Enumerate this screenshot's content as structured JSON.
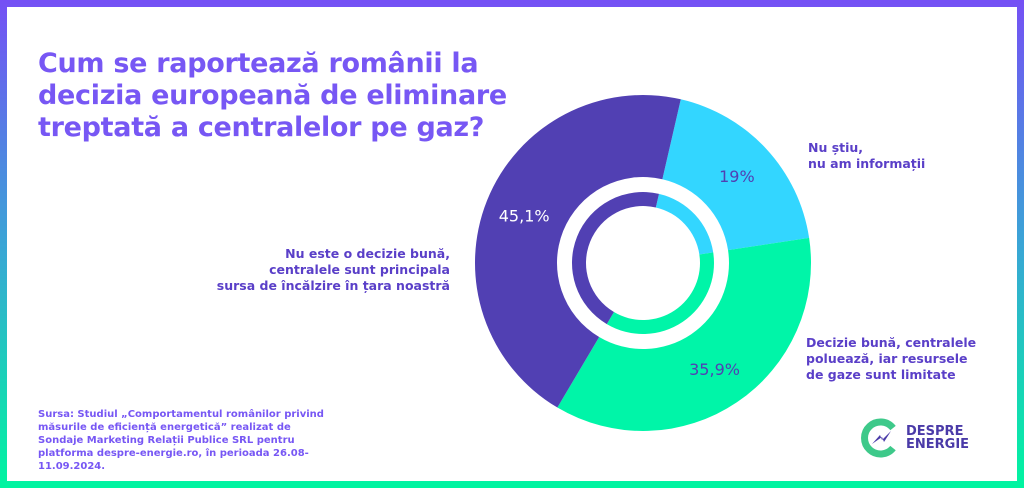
{
  "title": "Cum se raportează românii la decizia europeană de eliminare treptată a centralelor pe gaz?",
  "source": "Sursa: Studiul „Comportamentul românilor privind măsurile de eficiență energetică” realizat de Sondaje Marketing Relații Publice SRL pentru platforma despre-energie.ro, în perioada 26.08-11.09.2024.",
  "logo": {
    "line1": "DESPRE",
    "line2": "ENERGIE"
  },
  "colors": {
    "frame_top": "#7550f5",
    "frame_bottom": "#00f5a0",
    "title": "#7757f4"
  },
  "chart_data": {
    "type": "pie",
    "style": "donut",
    "series": [
      {
        "label": "Nu știu,\nnu am informații",
        "value": 19,
        "value_label": "19%",
        "color": "#33d6ff"
      },
      {
        "label": "Decizie bună, centralele\npoluează, iar resursele\nde gaze sunt limitate",
        "value": 35.9,
        "value_label": "35,9%",
        "color": "#00f5a8"
      },
      {
        "label": "Nu este o decizie bună,\ncentralele sunt principala\nsursa de încălzire în țara noastră",
        "value": 45.1,
        "value_label": "45,1%",
        "color": "#5140b3"
      }
    ]
  }
}
